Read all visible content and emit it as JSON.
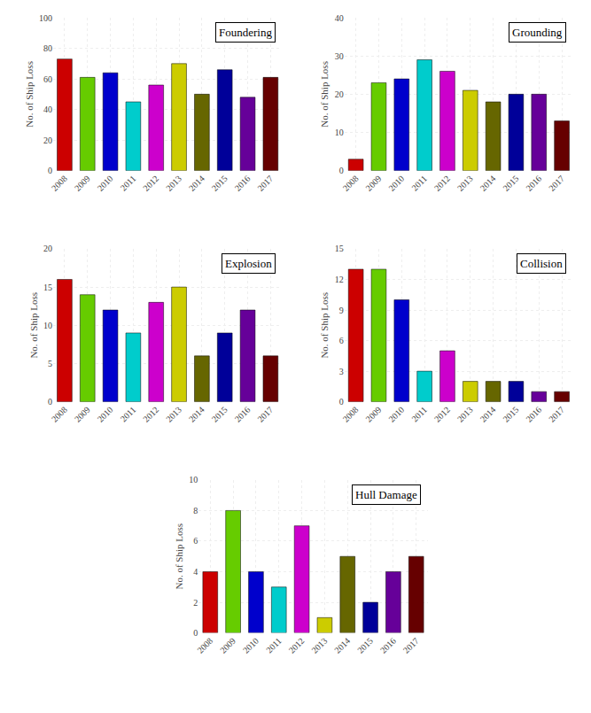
{
  "chart_data": [
    {
      "type": "bar",
      "title": "Foundering",
      "categories": [
        "2008",
        "2009",
        "2010",
        "2011",
        "2012",
        "2013",
        "2014",
        "2015",
        "2016",
        "2017"
      ],
      "values": [
        73,
        61,
        64,
        45,
        56,
        70,
        50,
        66,
        48,
        61
      ],
      "colors": [
        "#cc0000",
        "#66cc00",
        "#0000cc",
        "#00cccc",
        "#cc00cc",
        "#cccc00",
        "#666600",
        "#000099",
        "#660099",
        "#660000"
      ],
      "ylabel": "No. of Ship Loss",
      "ylim": [
        0,
        100
      ],
      "yticks": [
        0,
        20,
        40,
        60,
        80,
        100
      ],
      "grid": true
    },
    {
      "type": "bar",
      "title": "Grounding",
      "categories": [
        "2008",
        "2009",
        "2010",
        "2011",
        "2012",
        "2013",
        "2014",
        "2015",
        "2016",
        "2017"
      ],
      "values": [
        3,
        23,
        24,
        29,
        26,
        21,
        18,
        20,
        20,
        13
      ],
      "colors": [
        "#cc0000",
        "#66cc00",
        "#0000cc",
        "#00cccc",
        "#cc00cc",
        "#cccc00",
        "#666600",
        "#000099",
        "#660099",
        "#660000"
      ],
      "ylabel": "No. of Ship Loss",
      "ylim": [
        0,
        40
      ],
      "yticks": [
        0,
        10,
        20,
        30,
        40
      ],
      "grid": true
    },
    {
      "type": "bar",
      "title": "Explosion",
      "categories": [
        "2008",
        "2009",
        "2010",
        "2011",
        "2012",
        "2013",
        "2014",
        "2015",
        "2016",
        "2017"
      ],
      "values": [
        16,
        14,
        12,
        9,
        13,
        15,
        6,
        9,
        12,
        6
      ],
      "colors": [
        "#cc0000",
        "#66cc00",
        "#0000cc",
        "#00cccc",
        "#cc00cc",
        "#cccc00",
        "#666600",
        "#000099",
        "#660099",
        "#660000"
      ],
      "ylabel": "No. of Ship Loss",
      "ylim": [
        0,
        20
      ],
      "yticks": [
        0,
        5,
        10,
        15,
        20
      ],
      "grid": true
    },
    {
      "type": "bar",
      "title": "Collision",
      "categories": [
        "2008",
        "2009",
        "2010",
        "2011",
        "2012",
        "2013",
        "2014",
        "2015",
        "2016",
        "2017"
      ],
      "values": [
        13,
        13,
        10,
        3,
        5,
        2,
        2,
        2,
        1,
        1
      ],
      "colors": [
        "#cc0000",
        "#66cc00",
        "#0000cc",
        "#00cccc",
        "#cc00cc",
        "#cccc00",
        "#666600",
        "#000099",
        "#660099",
        "#660000"
      ],
      "ylabel": "No. of Ship Loss",
      "ylim": [
        0,
        15
      ],
      "yticks": [
        0,
        3,
        6,
        9,
        12,
        15
      ],
      "grid": true
    },
    {
      "type": "bar",
      "title": "Hull Damage",
      "categories": [
        "2008",
        "2009",
        "2010",
        "2011",
        "2012",
        "2013",
        "2014",
        "2015",
        "2016",
        "2017"
      ],
      "values": [
        4,
        8,
        4,
        3,
        7,
        1,
        5,
        2,
        4,
        5
      ],
      "colors": [
        "#cc0000",
        "#66cc00",
        "#0000cc",
        "#00cccc",
        "#cc00cc",
        "#cccc00",
        "#666600",
        "#000099",
        "#660099",
        "#660000"
      ],
      "ylabel": "No. of Ship Loss",
      "ylim": [
        0,
        10
      ],
      "yticks": [
        0,
        2,
        4,
        6,
        8,
        10
      ],
      "grid": true
    }
  ]
}
